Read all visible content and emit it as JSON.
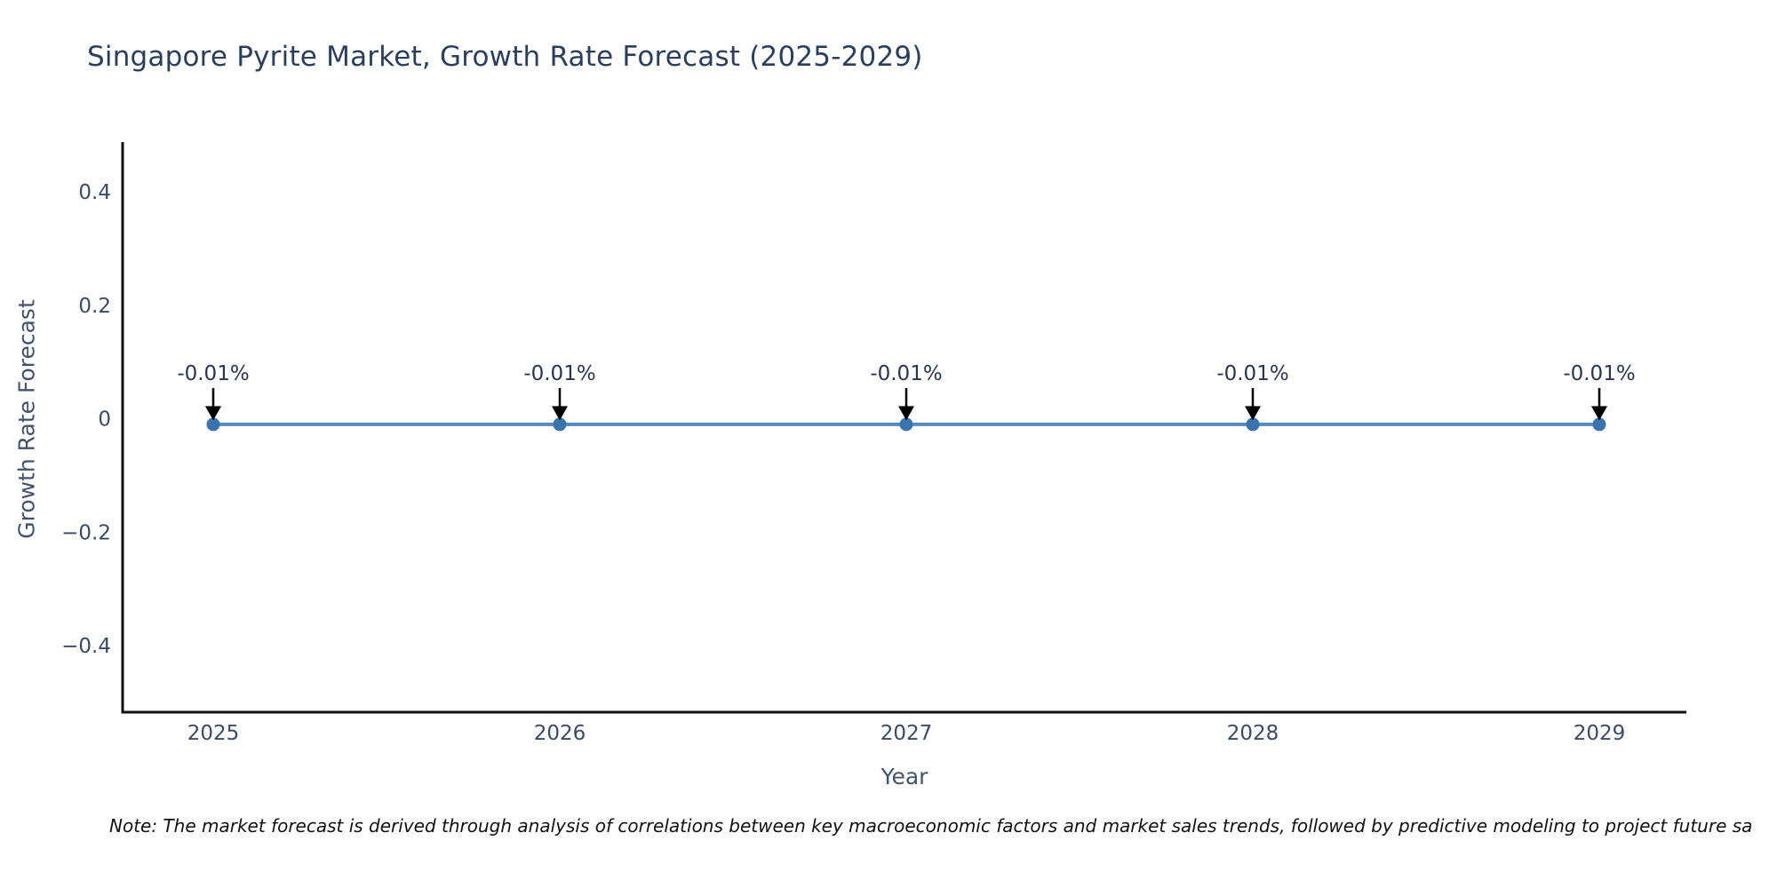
{
  "page": {
    "background": "#ffffff"
  },
  "title": {
    "text": "Singapore Pyrite Market, Growth Rate Forecast (2025-2029)"
  },
  "note": {
    "text": "Note: The market forecast is derived through analysis of correlations between key macroeconomic factors and market sales trends, followed by predictive modeling to project future sa"
  },
  "colors": {
    "background": "#ffffff",
    "title_text": "#2b3f5c",
    "axis_title_text": "#44516b",
    "tick_text": "#3d4a63",
    "annotation_text": "#2a3550",
    "note_text": "#111111",
    "axis_line": "#111111",
    "series_line": "#5389bd",
    "series_marker": "#3b73ad",
    "arrow": "#000000"
  },
  "chart_data": {
    "type": "line",
    "title": "Singapore Pyrite Market, Growth Rate Forecast (2025-2029)",
    "xlabel": "Year",
    "ylabel": "Growth Rate Forecast",
    "x": [
      2025,
      2026,
      2027,
      2028,
      2029
    ],
    "series": [
      {
        "name": "Growth Rate Forecast",
        "values": [
          -0.01,
          -0.01,
          -0.01,
          -0.01,
          -0.01
        ]
      }
    ],
    "point_labels": [
      "-0.01%",
      "-0.01%",
      "-0.01%",
      "-0.01%",
      "-0.01%"
    ],
    "xtick_labels": [
      "2025",
      "2026",
      "2027",
      "2028",
      "2029"
    ],
    "ytick_values": [
      0.4,
      0.2,
      0,
      -0.2,
      -0.4
    ],
    "ytick_labels": [
      "0.4",
      "0.2",
      "0",
      "−0.2",
      "−0.4"
    ],
    "ylim": [
      -0.5,
      0.5
    ],
    "grid": false,
    "legend": false,
    "annotation_arrows": true
  }
}
